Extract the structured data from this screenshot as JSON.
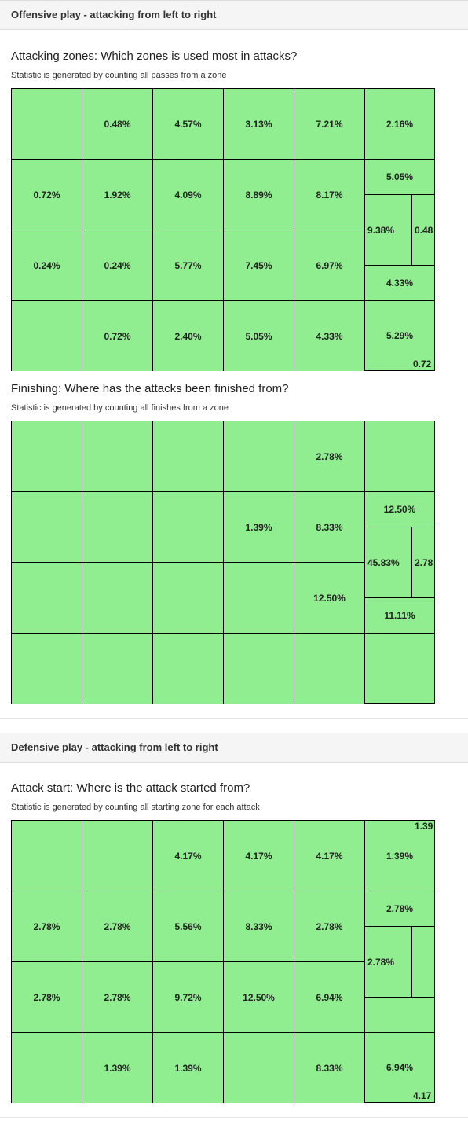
{
  "offensive": {
    "header": "Offensive play - attacking from left to right",
    "attacking_zones": {
      "title": "Attacking zones: Which zones is used most in attacks?",
      "subtitle": "Statistic is generated by counting all passes from a zone",
      "rows": [
        [
          "",
          "0.48%",
          "4.57%",
          "3.13%",
          "7.21%"
        ],
        [
          "0.72%",
          "1.92%",
          "4.09%",
          "8.89%",
          "8.17%"
        ],
        [
          "0.24%",
          "0.24%",
          "5.77%",
          "7.45%",
          "6.97%"
        ],
        [
          "",
          "0.72%",
          "2.40%",
          "5.05%",
          "4.33%"
        ]
      ],
      "box": {
        "top": "2.16%",
        "upper": "5.05%",
        "area": "9.38%",
        "goal": "0.48",
        "lower": "4.33%",
        "bottom": "5.29%",
        "corner_top": "",
        "corner_bottom": "0.72"
      }
    },
    "finishing": {
      "title": "Finishing: Where has the attacks been finished from?",
      "subtitle": "Statistic is generated by counting all finishes from a zone",
      "rows": [
        [
          "",
          "",
          "",
          "",
          "2.78%"
        ],
        [
          "",
          "",
          "",
          "1.39%",
          "8.33%"
        ],
        [
          "",
          "",
          "",
          "",
          "12.50%"
        ],
        [
          "",
          "",
          "",
          "",
          ""
        ]
      ],
      "box": {
        "top": "",
        "upper": "12.50%",
        "area": "45.83%",
        "goal": "2.78",
        "lower": "11.11%",
        "bottom": "",
        "corner_top": "",
        "corner_bottom": ""
      }
    }
  },
  "defensive": {
    "header": "Defensive play - attacking from left to right",
    "attack_start": {
      "title": "Attack start: Where is the attack started from?",
      "subtitle": "Statistic is generated by counting all starting zone for each attack",
      "rows": [
        [
          "",
          "",
          "4.17%",
          "4.17%",
          "4.17%"
        ],
        [
          "2.78%",
          "2.78%",
          "5.56%",
          "8.33%",
          "2.78%"
        ],
        [
          "2.78%",
          "2.78%",
          "9.72%",
          "12.50%",
          "6.94%"
        ],
        [
          "",
          "1.39%",
          "1.39%",
          "",
          "8.33%"
        ]
      ],
      "box": {
        "top": "1.39%",
        "upper": "2.78%",
        "area": "2.78%",
        "goal": "",
        "lower": "",
        "bottom": "6.94%",
        "corner_top": "1.39",
        "corner_bottom": "4.17"
      }
    }
  },
  "colors": {
    "zone_fill": "#90ee90",
    "zone_border": "#000000",
    "header_bg": "#f5f5f5"
  }
}
